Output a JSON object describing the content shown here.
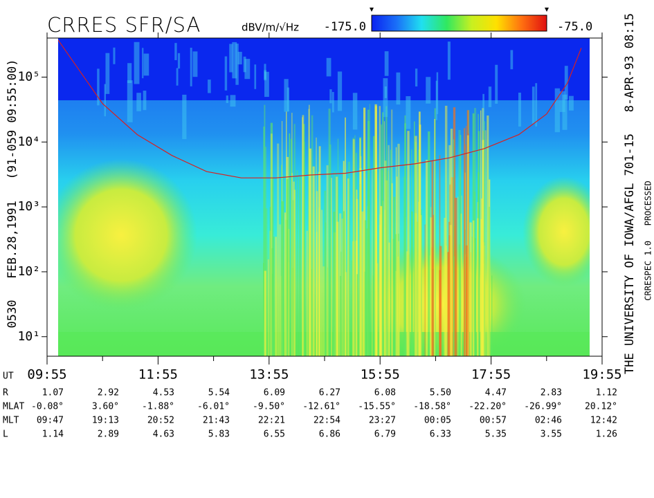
{
  "chart_data": {
    "type": "spectrogram",
    "title": "CRRES SFR/SA",
    "z_label": "dBV/m/√Hz",
    "zlim": [
      -175,
      -75
    ],
    "zticks": [
      {
        "value": -175,
        "label": "-175.0"
      },
      {
        "value": -75,
        "label": "-75.0"
      }
    ],
    "colorscale": [
      "#0a22f0",
      "#1a70f8",
      "#20e0f0",
      "#30e860",
      "#c8f020",
      "#ffe000",
      "#ff7010",
      "#e01010"
    ],
    "y_label": "0530   FEB.28,1991   (91-059 09:55:00)",
    "annotations": [
      "THE UNIVERSITY OF IOWA/AFGL 701-15   8-APR-93 08:15",
      "CRRESPEC 1.0   PROCESSED"
    ],
    "y_scale": "log",
    "ylim": [
      5,
      400000
    ],
    "yticks": [
      {
        "value": 10,
        "label": "10¹"
      },
      {
        "value": 100,
        "label": "10²"
      },
      {
        "value": 1000,
        "label": "10³"
      },
      {
        "value": 10000,
        "label": "10⁴"
      },
      {
        "value": 100000,
        "label": "10⁵"
      }
    ],
    "x_label": "UT",
    "xlim": [
      595,
      1195
    ],
    "xticks": [
      {
        "value": 595,
        "label": "09:55"
      },
      {
        "value": 715,
        "label": "11:55"
      },
      {
        "value": 835,
        "label": "13:55"
      },
      {
        "value": 955,
        "label": "15:55"
      },
      {
        "value": 1075,
        "label": "17:55"
      },
      {
        "value": 1195,
        "label": "19:55"
      }
    ],
    "xminor_ticks": [
      655,
      775,
      895,
      1015,
      1135
    ],
    "series": [
      {
        "color": "#d82020",
        "x": [
          605.5,
          655,
          692.5,
          730,
          767.5,
          805,
          842.5,
          880,
          917.5,
          955,
          992.5,
          1030,
          1067.5,
          1105,
          1135,
          1157.5,
          1172.5
        ],
        "values": [
          400000,
          39000,
          13000,
          6200,
          3500,
          2800,
          2800,
          3100,
          3300,
          4000,
          4600,
          5700,
          7900,
          13000,
          27000,
          81000,
          280000
        ]
      }
    ],
    "ephemeris": [
      {
        "label": "R",
        "values": [
          "1.07",
          "2.92",
          "4.53",
          "5.54",
          "6.09",
          "6.27",
          "6.08",
          "5.50",
          "4.47",
          "2.83",
          "1.12"
        ]
      },
      {
        "label": "MLAT",
        "values": [
          "-0.08°",
          "3.60°",
          "-1.88°",
          "-6.01°",
          "-9.50°",
          "-12.61°",
          "-15.55°",
          "-18.58°",
          "-22.20°",
          "-26.99°",
          "20.12°"
        ]
      },
      {
        "label": "MLT",
        "values": [
          "09:47",
          "19:13",
          "20:52",
          "21:43",
          "22:21",
          "22:54",
          "23:27",
          "00:05",
          "00:57",
          "02:46",
          "12:42"
        ]
      },
      {
        "label": "L",
        "values": [
          "1.14",
          "2.89",
          "4.63",
          "5.83",
          "6.55",
          "6.86",
          "6.79",
          "6.33",
          "5.35",
          "3.55",
          "1.26"
        ]
      }
    ]
  }
}
